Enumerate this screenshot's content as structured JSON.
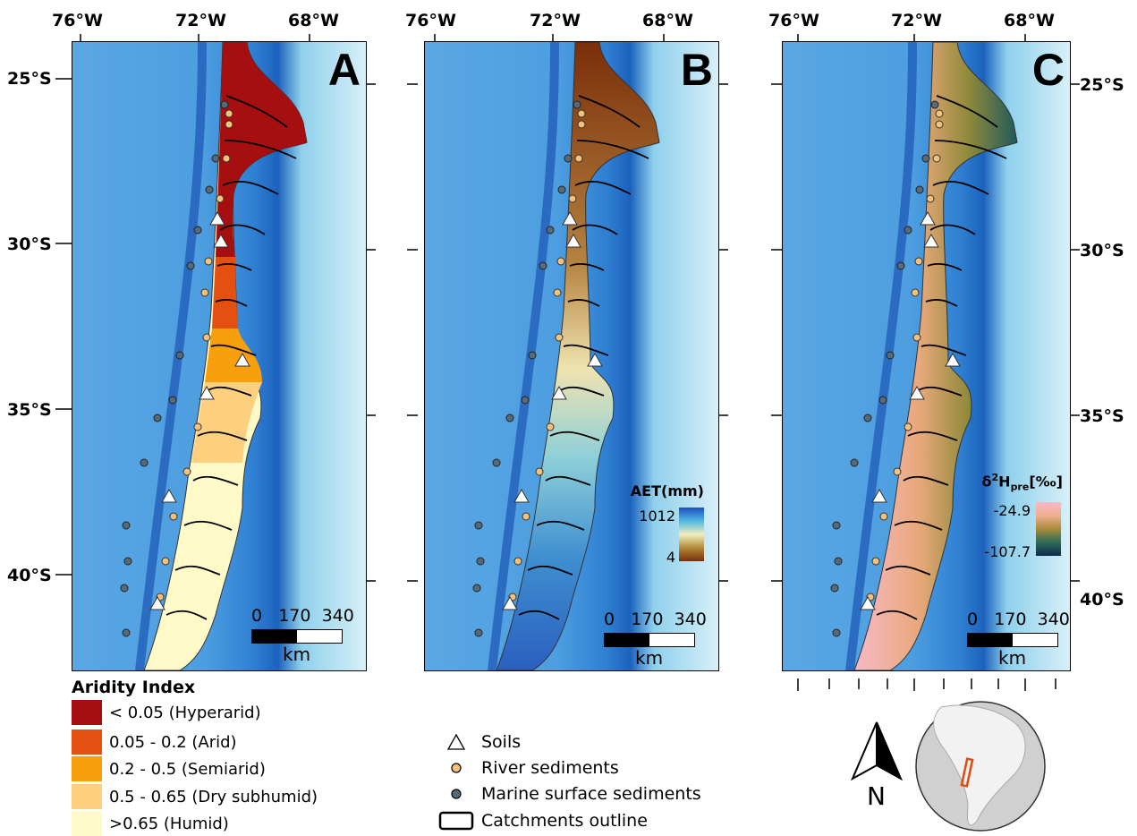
{
  "panels": [
    {
      "letter": "A",
      "variable": "aridity"
    },
    {
      "letter": "B",
      "variable": "aet"
    },
    {
      "letter": "C",
      "variable": "d2h"
    }
  ],
  "axes": {
    "lon_labels": [
      "76°W",
      "72°W",
      "68°W"
    ],
    "lat_labels": [
      "25°S",
      "30°S",
      "35°S",
      "40°S"
    ]
  },
  "scalebar": {
    "ticks": [
      "0",
      "170",
      "340"
    ],
    "unit": "km"
  },
  "colorbar_b": {
    "title": "AET(mm)",
    "max": "1012",
    "min": "4",
    "colors": [
      "#1f4fbf",
      "#4fb8e0",
      "#f2eec0",
      "#b38a3a",
      "#7a2e0a"
    ]
  },
  "colorbar_c": {
    "title_main": "δ",
    "title_sup": "2",
    "title_h": "H",
    "title_sub": "pre",
    "title_unit": "[‰]",
    "max": "-24.9",
    "min": "-107.7",
    "colors": [
      "#f7b9c6",
      "#efb08e",
      "#a88a3a",
      "#2d6b5a",
      "#0e2a4a"
    ]
  },
  "aridity_legend": {
    "title": "Aridity Index",
    "items": [
      {
        "label": "< 0.05 (Hyperarid)",
        "color": "#a50f0f"
      },
      {
        "label": "0.05 - 0.2 (Arid)",
        "color": "#e35010"
      },
      {
        "label": "0.2 - 0.5 (Semiarid)",
        "color": "#f79f0c"
      },
      {
        "label": "0.5 - 0.65 (Dry subhumid)",
        "color": "#fdcf7e"
      },
      {
        "label": ">0.65 (Humid)",
        "color": "#fffac8"
      }
    ]
  },
  "symbol_legend": {
    "items": [
      {
        "label": "Soils",
        "symbol": "triangle-icon"
      },
      {
        "label": "River sediments",
        "symbol": "orange-circle-icon"
      },
      {
        "label": "Marine surface sediments",
        "symbol": "gray-circle-icon"
      },
      {
        "label": "Catchments outline",
        "symbol": "rectangle-outline-icon"
      }
    ]
  },
  "north_arrow": {
    "label": "N"
  },
  "locator": {
    "region": "South America",
    "highlight_color": "#e04a10"
  }
}
